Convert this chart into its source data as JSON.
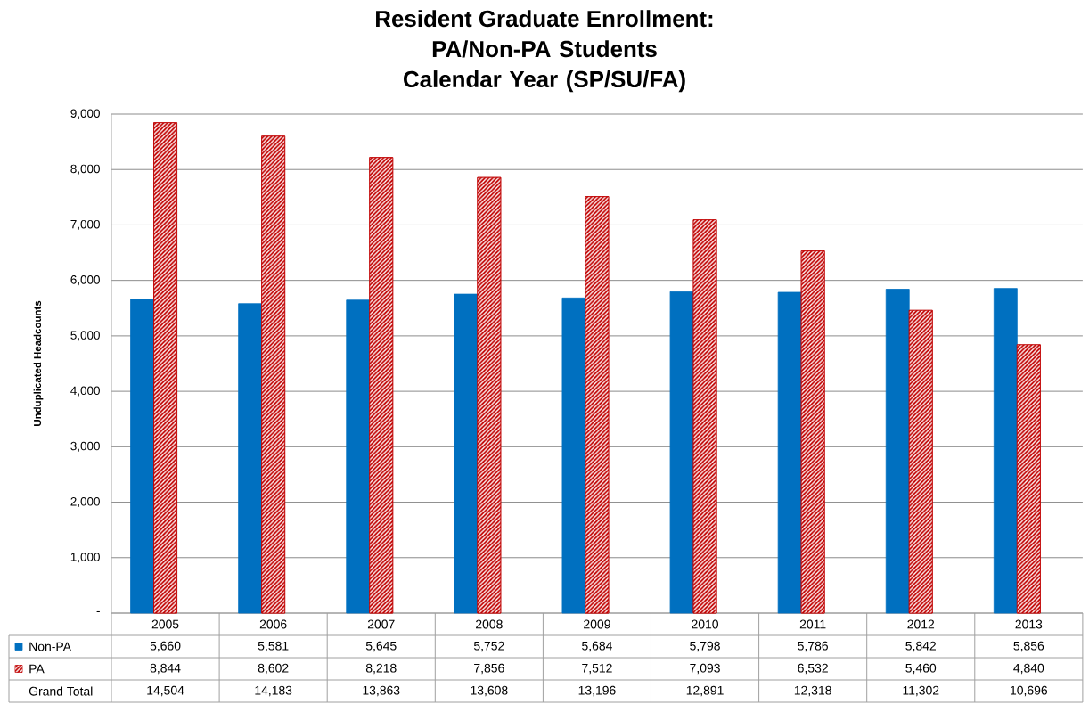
{
  "chart_data": {
    "type": "bar",
    "title": "Resident Graduate Enrollment:",
    "subtitle": "PA/Non-PA Students Calendar Year (SP/SU/FA)",
    "ylabel": "Unduplicated Headcounts",
    "categories": [
      "2005",
      "2006",
      "2007",
      "2008",
      "2009",
      "2010",
      "2011",
      "2012",
      "2013"
    ],
    "series": [
      {
        "name": "Non-PA",
        "color": "#0070c0",
        "values": [
          5660,
          5581,
          5645,
          5752,
          5684,
          5798,
          5786,
          5842,
          5856
        ],
        "value_labels": [
          "5,660",
          "5,581",
          "5,645",
          "5,752",
          "5,684",
          "5,798",
          "5,786",
          "5,842",
          "5,856"
        ]
      },
      {
        "name": "PA",
        "color": "#c00000",
        "values": [
          8844,
          8602,
          8218,
          7856,
          7512,
          7093,
          6532,
          5460,
          4840
        ],
        "value_labels": [
          "8,844",
          "8,602",
          "8,218",
          "7,856",
          "7,512",
          "7,093",
          "6,532",
          "5,460",
          "4,840"
        ]
      }
    ],
    "annotations": [
      "Grand Total",
      "14,504",
      "14,183",
      "13,863",
      "13,608",
      "13,196",
      "12,891",
      "12,318",
      "11,302",
      "10,696"
    ],
    "ylim": [
      0,
      9000
    ],
    "yticks": [
      {
        "value": 0,
        "label": "-"
      },
      {
        "value": 1000,
        "label": "1,000"
      },
      {
        "value": 2000,
        "label": "2,000"
      },
      {
        "value": 3000,
        "label": "3,000"
      },
      {
        "value": 4000,
        "label": "4,000"
      },
      {
        "value": 5000,
        "label": "5,000"
      },
      {
        "value": 6000,
        "label": "6,000"
      },
      {
        "value": 7000,
        "label": "7,000"
      },
      {
        "value": 8000,
        "label": "8,000"
      },
      {
        "value": 9000,
        "label": "9,000"
      }
    ],
    "grid": "y",
    "legend": "bottom"
  }
}
